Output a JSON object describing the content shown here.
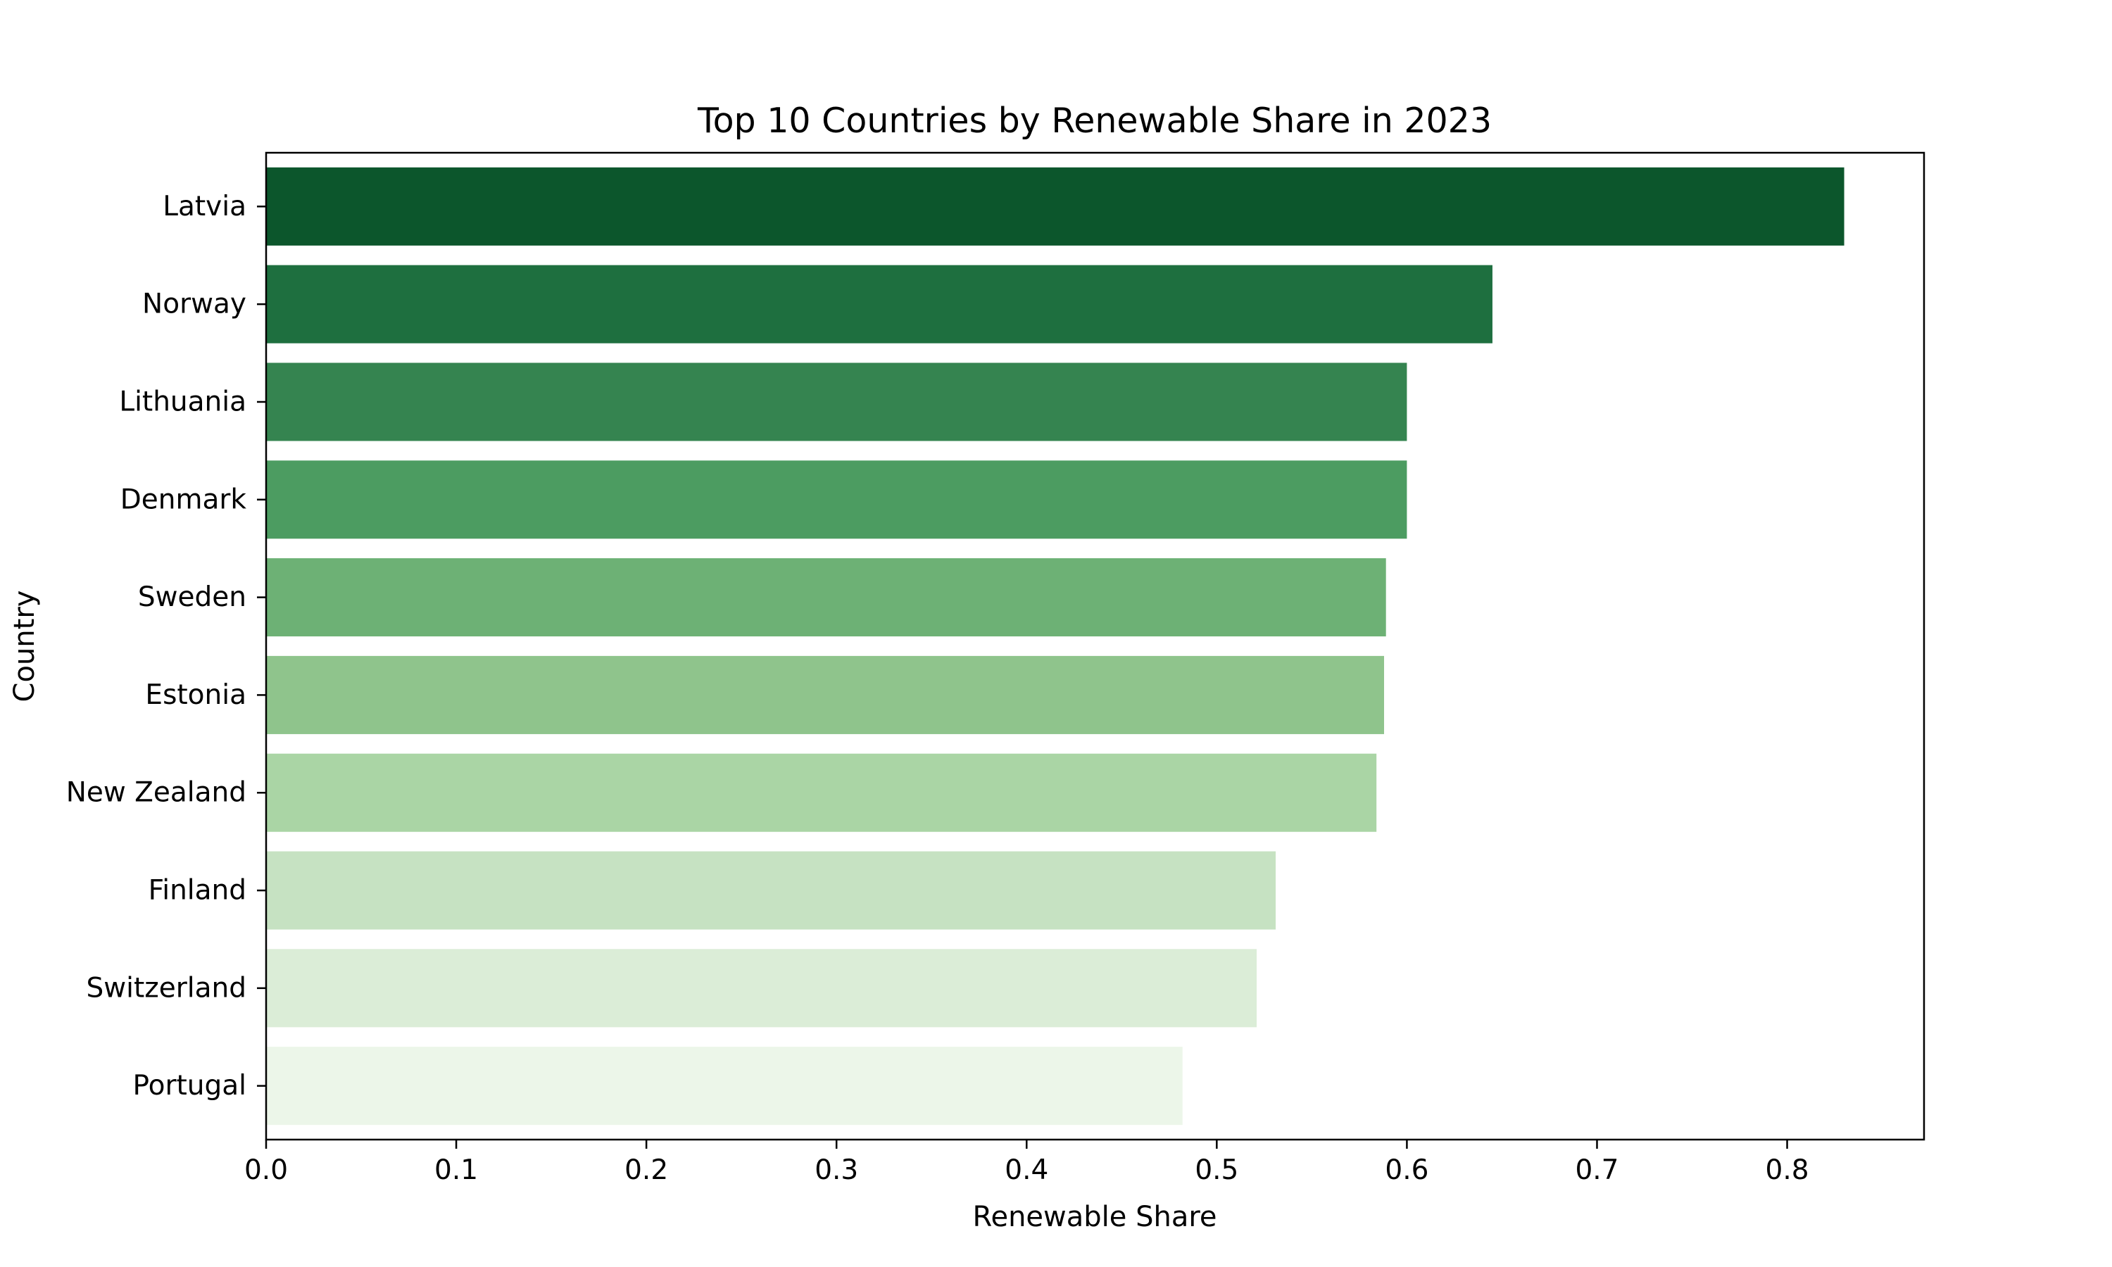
{
  "chart_data": {
    "type": "bar",
    "orientation": "horizontal",
    "title": "Top 10 Countries by Renewable Share in 2023",
    "xlabel": "Renewable Share",
    "ylabel": "Country",
    "categories": [
      "Latvia",
      "Norway",
      "Lithuania",
      "Denmark",
      "Sweden",
      "Estonia",
      "New Zealand",
      "Finland",
      "Switzerland",
      "Portugal"
    ],
    "values": [
      0.83,
      0.645,
      0.6,
      0.6,
      0.589,
      0.588,
      0.584,
      0.531,
      0.521,
      0.482
    ],
    "xlim": [
      0,
      0.872
    ],
    "xticks": [
      0.0,
      0.1,
      0.2,
      0.3,
      0.4,
      0.5,
      0.6,
      0.7,
      0.8
    ],
    "xtick_labels": [
      "0.0",
      "0.1",
      "0.2",
      "0.3",
      "0.4",
      "0.5",
      "0.6",
      "0.7",
      "0.8"
    ],
    "grid": false,
    "colors": [
      "#0c562c",
      "#1e6f3f",
      "#358450",
      "#4c9c61",
      "#6db175",
      "#8fc48c",
      "#aad5a5",
      "#c6e2c2",
      "#dbedd7",
      "#ecf6e9"
    ]
  }
}
